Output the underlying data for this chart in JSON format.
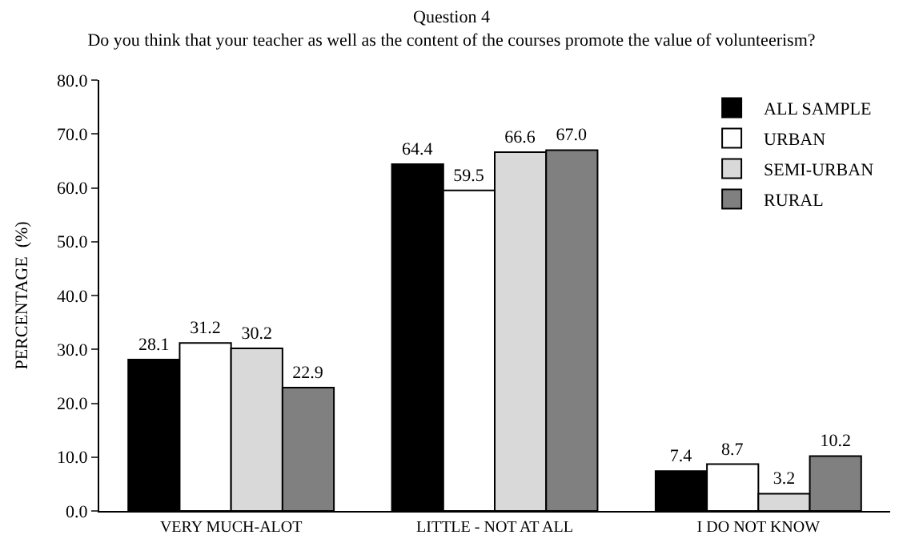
{
  "chart_data": {
    "type": "bar",
    "title": "Question 4",
    "subtitle": "Do you think that your teacher as well as the content of the courses promote the value of volunteerism?",
    "ylabel": "PERCENTAGE  (%)",
    "categories": [
      "VERY MUCH-ALOT",
      "LITTLE - NOT AT ALL",
      "I DO NOT KNOW"
    ],
    "series": [
      {
        "name": "ALL SAMPLE",
        "color": "#000000",
        "values": [
          28.1,
          64.4,
          7.4
        ],
        "value_labels": [
          "28.1",
          "64.4",
          "7.4"
        ]
      },
      {
        "name": "URBAN",
        "color": "#ffffff",
        "values": [
          31.2,
          59.5,
          8.7
        ],
        "value_labels": [
          "31.2",
          "59.5",
          "8.7"
        ]
      },
      {
        "name": "SEMI-URBAN",
        "color": "#d9d9d9",
        "values": [
          30.2,
          66.6,
          3.2
        ],
        "value_labels": [
          "30.2",
          "66.6",
          "3.2"
        ]
      },
      {
        "name": "RURAL",
        "color": "#808080",
        "values": [
          22.9,
          67.0,
          10.2
        ],
        "value_labels": [
          "22.9",
          "67.0",
          "10.2"
        ]
      }
    ],
    "ylim": [
      0,
      80
    ],
    "yticks": [
      {
        "value": 0,
        "label": "0.0"
      },
      {
        "value": 10,
        "label": "10.0"
      },
      {
        "value": 20,
        "label": "20.0"
      },
      {
        "value": 30,
        "label": "30.0"
      },
      {
        "value": 40,
        "label": "40.0"
      },
      {
        "value": 50,
        "label": "50.0"
      },
      {
        "value": 60,
        "label": "60.0"
      },
      {
        "value": 70,
        "label": "70.0"
      },
      {
        "value": 80,
        "label": "80.0"
      }
    ],
    "grid": false,
    "legend": "top right"
  }
}
